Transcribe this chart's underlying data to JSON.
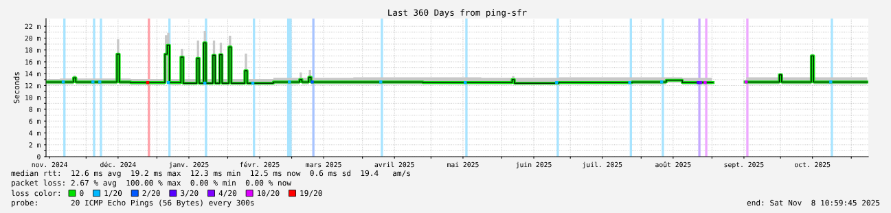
{
  "chart_data": {
    "type": "step",
    "title": "Last 360 Days from ping-sfr",
    "ylabel": "Seconds",
    "xlim": [
      "2024-11-13T11:00",
      "2025-11-08T11:00"
    ],
    "xticks": [
      {
        "value": "2024-11-15",
        "label": "nov. 2024"
      },
      {
        "value": "2024-12-01",
        "label": null
      },
      {
        "value": "2024-12-15",
        "label": "déc. 2024"
      },
      {
        "value": "2025-01-01",
        "label": null
      },
      {
        "value": "2025-01-15",
        "label": "janv. 2025"
      },
      {
        "value": "2025-02-01",
        "label": null
      },
      {
        "value": "2025-02-15",
        "label": "févr. 2025"
      },
      {
        "value": "2025-03-01",
        "label": null
      },
      {
        "value": "2025-03-15",
        "label": "mars 2025"
      },
      {
        "value": "2025-04-01",
        "label": null
      },
      {
        "value": "2025-04-15",
        "label": "avril 2025"
      },
      {
        "value": "2025-05-01",
        "label": null
      },
      {
        "value": "2025-05-15",
        "label": "mai 2025"
      },
      {
        "value": "2025-06-01",
        "label": null
      },
      {
        "value": "2025-06-15",
        "label": "juin 2025"
      },
      {
        "value": "2025-07-01",
        "label": null
      },
      {
        "value": "2025-07-15",
        "label": "juil. 2025"
      },
      {
        "value": "2025-08-01",
        "label": null
      },
      {
        "value": "2025-08-15",
        "label": "août 2025"
      },
      {
        "value": "2025-09-01",
        "label": null
      },
      {
        "value": "2025-09-15",
        "label": "sept. 2025"
      },
      {
        "value": "2025-10-01",
        "label": null
      },
      {
        "value": "2025-10-15",
        "label": "oct. 2025"
      },
      {
        "value": "2025-11-01",
        "label": null
      }
    ],
    "ylim": [
      0,
      23.3
    ],
    "yticks": [
      0,
      {
        "value": 1,
        "label": null
      },
      {
        "value": 2,
        "label": "2 m"
      },
      {
        "value": 3,
        "label": null
      },
      {
        "value": 4,
        "label": "4 m"
      },
      {
        "value": 5,
        "label": null
      },
      {
        "value": 6,
        "label": "6 m"
      },
      {
        "value": 7,
        "label": null
      },
      {
        "value": 8,
        "label": "8 m"
      },
      {
        "value": 9,
        "label": null
      },
      {
        "value": 10,
        "label": "10 m"
      },
      {
        "value": 11,
        "label": null
      },
      {
        "value": 12,
        "label": "12 m"
      },
      {
        "value": 13,
        "label": null
      },
      {
        "value": 14,
        "label": "14 m"
      },
      {
        "value": 15,
        "label": null
      },
      {
        "value": 16,
        "label": "16 m"
      },
      {
        "value": 17,
        "label": null
      },
      {
        "value": 18,
        "label": "18 m"
      },
      {
        "value": 19,
        "label": null
      },
      {
        "value": 20,
        "label": "20 m"
      },
      {
        "value": 21,
        "label": null
      },
      {
        "value": 22,
        "label": "22 m"
      }
    ],
    "grid": true,
    "legend": "bottom",
    "legend_title": "loss color:",
    "series": [
      {
        "name": "0",
        "color": "#00e000",
        "x": [
          "2024-11-14",
          "2024-11-25",
          "2024-11-26",
          "2024-11-27",
          "2024-12-14",
          "2024-12-15",
          "2024-12-16",
          "2024-12-25",
          "2025-01-04",
          "2025-01-05",
          "2025-01-06",
          "2025-01-07",
          "2025-01-11",
          "2025-01-12",
          "2025-01-13",
          "2025-01-18",
          "2025-01-19",
          "2025-01-20",
          "2025-01-21",
          "2025-01-22",
          "2025-01-23",
          "2025-01-25",
          "2025-01-26",
          "2025-01-27",
          "2025-01-28",
          "2025-01-29",
          "2025-01-30",
          "2025-02-01",
          "2025-02-02",
          "2025-02-03",
          "2025-02-08",
          "2025-02-09",
          "2025-02-10",
          "2025-03-04",
          "2025-03-05",
          "2025-03-06",
          "2025-03-08",
          "2025-03-09",
          "2025-03-10",
          "2025-04-15",
          "2025-05-10",
          "2025-06-05",
          "2025-06-06",
          "2025-06-07",
          "2025-07-15",
          "2025-08-10",
          "2025-08-14",
          "2025-08-18",
          "2025-08-20",
          "2025-09-01",
          "2025-09-02",
          "2025-09-15",
          "2025-09-16",
          "2025-09-30",
          "2025-10-01",
          "2025-10-02",
          "2025-10-14",
          "2025-10-15",
          "2025-10-16",
          "2025-11-08"
        ],
        "values": [
          12.6,
          12.6,
          13.3,
          12.6,
          12.6,
          17.3,
          12.6,
          12.5,
          12.5,
          17.3,
          18.8,
          12.5,
          12.5,
          16.8,
          12.4,
          12.4,
          16.6,
          12.4,
          12.4,
          19.2,
          12.4,
          12.4,
          17.1,
          12.4,
          12.4,
          17.2,
          12.4,
          12.4,
          18.5,
          12.4,
          12.4,
          14.5,
          12.4,
          12.6,
          13.0,
          12.6,
          12.6,
          13.4,
          12.6,
          12.6,
          12.5,
          12.5,
          13.0,
          12.4,
          12.5,
          12.6,
          12.9,
          12.9,
          12.5,
          12.5,
          null,
          null,
          12.6,
          12.6,
          13.8,
          12.6,
          12.6,
          17.0,
          12.6,
          12.6
        ],
        "lower": [
          12.2,
          12.2,
          12.5,
          12.2,
          12.2,
          12.5,
          12.2,
          12.1,
          12.1,
          12.5,
          12.5,
          12.1,
          12.1,
          12.4,
          12.1,
          12.1,
          12.4,
          12.1,
          12.1,
          12.4,
          12.1,
          12.1,
          12.4,
          12.1,
          12.1,
          12.4,
          12.1,
          12.1,
          12.4,
          12.1,
          12.1,
          12.3,
          12.1,
          12.2,
          12.4,
          12.2,
          12.2,
          12.4,
          12.2,
          12.2,
          12.2,
          12.2,
          12.4,
          12.1,
          12.2,
          12.2,
          12.5,
          12.5,
          12.2,
          12.2,
          null,
          null,
          12.2,
          12.2,
          12.4,
          12.2,
          12.2,
          12.4,
          12.2,
          12.2
        ],
        "upper": [
          13.1,
          13.2,
          13.7,
          13.2,
          13.2,
          19.8,
          13.2,
          13.1,
          13.1,
          20.5,
          20.9,
          13.1,
          13.1,
          18.2,
          13.1,
          13.1,
          19.6,
          13.1,
          13.1,
          21.2,
          13.1,
          13.1,
          19.6,
          13.1,
          13.1,
          19.2,
          13.1,
          13.1,
          20.4,
          13.1,
          13.1,
          17.4,
          13.1,
          13.3,
          14.2,
          13.3,
          13.3,
          14.6,
          13.3,
          13.4,
          13.4,
          13.3,
          13.6,
          13.3,
          13.4,
          13.4,
          13.4,
          13.4,
          13.3,
          13.3,
          null,
          null,
          13.4,
          13.4,
          14.1,
          13.4,
          13.4,
          17.3,
          13.4,
          13.4
        ]
      },
      {
        "name": "1/20",
        "type": "scatter",
        "color": "#00b8ff",
        "x": [
          "2024-11-21",
          "2024-12-04",
          "2024-12-07",
          "2025-01-06",
          "2025-01-22",
          "2025-02-12",
          "2025-02-28",
          "2025-04-09",
          "2025-05-16",
          "2025-06-25",
          "2025-07-27",
          "2025-08-10",
          "2025-10-23"
        ],
        "values": [
          12.6,
          12.6,
          12.6,
          12.5,
          12.4,
          12.4,
          12.6,
          12.6,
          12.5,
          12.5,
          12.5,
          12.6,
          12.6
        ]
      },
      {
        "name": "2/20",
        "type": "scatter",
        "color": "#0059ff",
        "x": [
          "2025-03-10"
        ],
        "values": [
          12.6
        ]
      },
      {
        "name": "3/20",
        "type": "scatter",
        "color": "#5500ff",
        "x": [
          "2025-08-26"
        ],
        "values": [
          12.5
        ]
      },
      {
        "name": "4/20",
        "type": "scatter",
        "color": "#7e00ff",
        "x": [
          "2025-08-27"
        ],
        "values": [
          12.5
        ]
      },
      {
        "name": "10/20",
        "type": "scatter",
        "color": "#dd00ff",
        "x": [
          "2025-08-29",
          "2025-09-16"
        ],
        "values": [
          12.5,
          12.6
        ]
      },
      {
        "name": "19/20",
        "type": "scatter",
        "color": "#ff0000",
        "x": [
          "2024-12-28"
        ],
        "values": [
          12.5
        ]
      }
    ],
    "bands": [
      {
        "axis": "x",
        "from": "2024-11-21",
        "to": "2024-11-22",
        "color": "#a8e4ff"
      },
      {
        "axis": "x",
        "from": "2024-12-04",
        "to": "2024-12-05",
        "color": "#a8e4ff"
      },
      {
        "axis": "x",
        "from": "2024-12-07",
        "to": "2024-12-08",
        "color": "#a8e4ff"
      },
      {
        "axis": "x",
        "from": "2025-01-06",
        "to": "2025-01-07",
        "color": "#a8e4ff"
      },
      {
        "axis": "x",
        "from": "2025-01-22",
        "to": "2025-01-23",
        "color": "#a8e4ff"
      },
      {
        "axis": "x",
        "from": "2025-02-12",
        "to": "2025-02-13",
        "color": "#a8e4ff"
      },
      {
        "axis": "x",
        "from": "2025-02-27",
        "to": "2025-03-01",
        "color": "#a8e4ff"
      },
      {
        "axis": "x",
        "from": "2025-04-09",
        "to": "2025-04-10",
        "color": "#a8e4ff"
      },
      {
        "axis": "x",
        "from": "2025-05-16",
        "to": "2025-05-17",
        "color": "#a8e4ff"
      },
      {
        "axis": "x",
        "from": "2025-06-25",
        "to": "2025-06-26",
        "color": "#a8e4ff"
      },
      {
        "axis": "x",
        "from": "2025-07-27",
        "to": "2025-07-28",
        "color": "#a8e4ff"
      },
      {
        "axis": "x",
        "from": "2025-08-10",
        "to": "2025-08-11",
        "color": "#a8e4ff"
      },
      {
        "axis": "x",
        "from": "2025-10-23",
        "to": "2025-10-24",
        "color": "#a8e4ff"
      },
      {
        "axis": "x",
        "from": "2025-03-10",
        "to": "2025-03-11",
        "color": "#a8c4ff"
      },
      {
        "axis": "x",
        "from": "2025-08-26",
        "to": "2025-08-27",
        "color": "#c4a8ff"
      },
      {
        "axis": "x",
        "from": "2025-08-29",
        "to": "2025-08-30",
        "color": "#eea8ff"
      },
      {
        "axis": "x",
        "from": "2025-09-16",
        "to": "2025-09-17",
        "color": "#eea8ff"
      },
      {
        "axis": "x",
        "from": "2024-12-28",
        "to": "2024-12-29",
        "color": "#ffa0a8"
      }
    ],
    "annotations": [
      "median rtt:  12.6 ms avg  19.2 ms max  12.3 ms min  12.5 ms now  0.6 ms sd  19.4   am/s",
      "packet loss: 2.67 % avg  100.00 % max  0.00 % min  0.00 % now",
      "probe:       20 ICMP Echo Pings (56 Bytes) every 300s",
      "end: Sat Nov  8 10:59:45 2025"
    ]
  }
}
